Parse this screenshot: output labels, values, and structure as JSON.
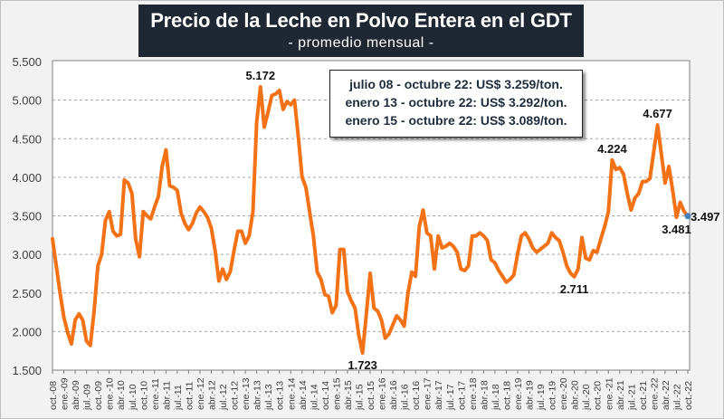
{
  "header": {
    "title": "Precio de la Leche en Polvo Entera en el GDT",
    "subtitle": "- promedio mensual -"
  },
  "legend_box": {
    "lines": [
      "julio 08 - octubre 22: US$ 3.259/ton.",
      "enero 13 - octubre 22: US$ 3.292/ton.",
      "enero 15 - octubre 22: US$ 3.089/ton."
    ]
  },
  "colors": {
    "line": "#f47216",
    "last_point": "#4a7ebb",
    "title_bg": "#1f2733",
    "grid": "#a6a6a6"
  },
  "chart_data": {
    "type": "line",
    "title": "Precio de la Leche en Polvo Entera en el GDT",
    "subtitle": "- promedio mensual -",
    "xlabel": "",
    "ylabel": "",
    "ylim": [
      1500,
      5500
    ],
    "yticks": [
      1500,
      2000,
      2500,
      3000,
      3500,
      4000,
      4500,
      5000,
      5500
    ],
    "ytick_labels": [
      "1.500",
      "2.000",
      "2.500",
      "3.000",
      "3.500",
      "4.000",
      "4.500",
      "5.000",
      "5.500"
    ],
    "grid": "horizontal dashed",
    "x_start": "oct-08",
    "x_end": "oct-22",
    "x_frequency": "monthly",
    "xtick_labels": [
      "oct.-08",
      "ene.-09",
      "abr.-09",
      "jul.-09",
      "oct.-09",
      "ene.-10",
      "abr.-10",
      "jul.-10",
      "oct.-10",
      "ene.-11",
      "abr.-11",
      "jul.-11",
      "oct.-11",
      "ene.-12",
      "abr.-12",
      "jul.-12",
      "oct.-12",
      "ene.-13",
      "abr.-13",
      "jul.-13",
      "oct.-13",
      "ene.-14",
      "abr.-14",
      "jul.-14",
      "oct.-14",
      "ene.-15",
      "abr.-15",
      "jul.-15",
      "oct.-15",
      "ene.-16",
      "abr.-16",
      "jul.-16",
      "oct.-16",
      "ene.-17",
      "abr.-17",
      "jul.-17",
      "oct.-17",
      "ene.-18",
      "abr.-18",
      "jul.-18",
      "oct.-18",
      "ene.-19",
      "abr.-19",
      "jul.-19",
      "oct.-19",
      "ene.-20",
      "abr.-20",
      "jul.-20",
      "oct.-20",
      "ene.-21",
      "abr.-21",
      "jul.-21",
      "oct.-21",
      "ene.-22",
      "abr.-22",
      "jul.-22",
      "oct.-22"
    ],
    "values": [
      3203,
      2850,
      2500,
      2190,
      1990,
      1840,
      2150,
      2230,
      2150,
      1875,
      1820,
      2265,
      2850,
      3000,
      3440,
      3555,
      3300,
      3240,
      3260,
      3965,
      3925,
      3790,
      3200,
      2970,
      3555,
      3500,
      3460,
      3615,
      3750,
      4140,
      4355,
      3890,
      3870,
      3830,
      3535,
      3400,
      3320,
      3400,
      3535,
      3615,
      3555,
      3480,
      3340,
      3050,
      2655,
      2810,
      2675,
      2775,
      3050,
      3300,
      3300,
      3145,
      3240,
      3555,
      4710,
      5172,
      4650,
      4845,
      5060,
      5080,
      5125,
      4880,
      4980,
      4940,
      5000,
      4530,
      4000,
      3870,
      3555,
      3240,
      2770,
      2675,
      2480,
      2460,
      2245,
      2340,
      3065,
      3065,
      2520,
      2400,
      2305,
      1950,
      1723,
      2225,
      2755,
      2305,
      2265,
      2150,
      1915,
      1970,
      2090,
      2205,
      2150,
      2070,
      2500,
      2770,
      2715,
      3360,
      3575,
      3280,
      3240,
      2810,
      3240,
      3085,
      3105,
      3145,
      3105,
      3030,
      2810,
      2790,
      2850,
      3240,
      3240,
      3280,
      3240,
      3180,
      2930,
      2890,
      2790,
      2715,
      2640,
      2675,
      2735,
      3010,
      3240,
      3280,
      3200,
      3085,
      3030,
      3065,
      3105,
      3145,
      3280,
      3220,
      3180,
      3030,
      2850,
      2755,
      2711,
      2810,
      3220,
      2950,
      2930,
      3050,
      3030,
      3200,
      3360,
      3555,
      4224,
      4100,
      4125,
      4040,
      3790,
      3575,
      3730,
      3790,
      3945,
      3945,
      3985,
      4335,
      4677,
      4300,
      3925,
      4140,
      3830,
      3481,
      3675,
      3560,
      3497
    ],
    "annotations": [
      {
        "index": 55,
        "text": "5.172",
        "position": "above"
      },
      {
        "index": 82,
        "text": "1.723",
        "position": "below"
      },
      {
        "index": 138,
        "text": "2.711",
        "position": "below"
      },
      {
        "index": 148,
        "text": "4.224",
        "position": "above"
      },
      {
        "index": 160,
        "text": "4.677",
        "position": "above"
      },
      {
        "index": 165,
        "text": "3.481",
        "position": "below"
      },
      {
        "index": 168,
        "text": "3.497",
        "position": "right"
      }
    ]
  }
}
